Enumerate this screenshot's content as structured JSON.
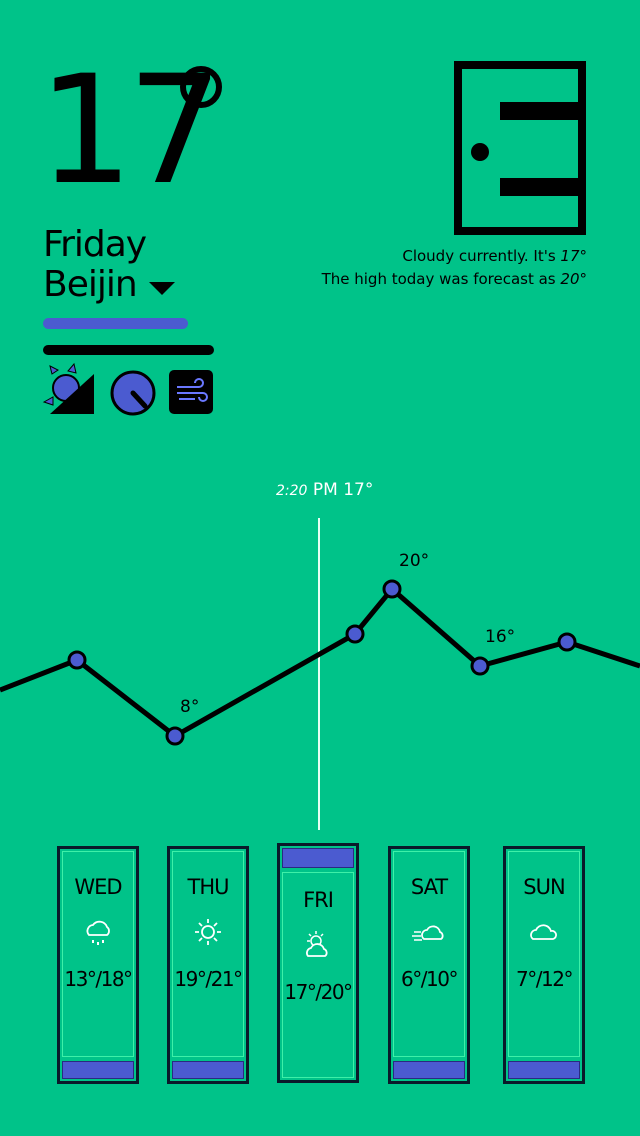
{
  "current": {
    "temperature": "17",
    "day": "Friday",
    "city": "Beijin"
  },
  "summary": {
    "line1_text": "Cloudy currently. It's ",
    "line1_value": "17°",
    "line2_text": "The high today was forecast as ",
    "line2_value": "20°"
  },
  "icons": [
    "sunrise-sunset-icon",
    "clock-icon",
    "wind-icon"
  ],
  "graph": {
    "marker_time": "2:20",
    "marker_ampm": "PM",
    "marker_temp": "17°",
    "labels": [
      "8°",
      "20°",
      "16°"
    ]
  },
  "forecast": [
    {
      "day": "WED",
      "range": "13°/18°",
      "icon": "rain-icon",
      "selected": false
    },
    {
      "day": "THU",
      "range": "19°/21°",
      "icon": "sun-icon",
      "selected": false
    },
    {
      "day": "FRI",
      "range": "17°/20°",
      "icon": "partly-cloudy-icon",
      "selected": true
    },
    {
      "day": "SAT",
      "range": "6°/10°",
      "icon": "wind-cloud-icon",
      "selected": false
    },
    {
      "day": "SUN",
      "range": "7°/12°",
      "icon": "cloud-icon",
      "selected": false
    }
  ],
  "colors": {
    "background": "#00c389",
    "accent": "#4b5bd0",
    "ink": "#000000"
  }
}
